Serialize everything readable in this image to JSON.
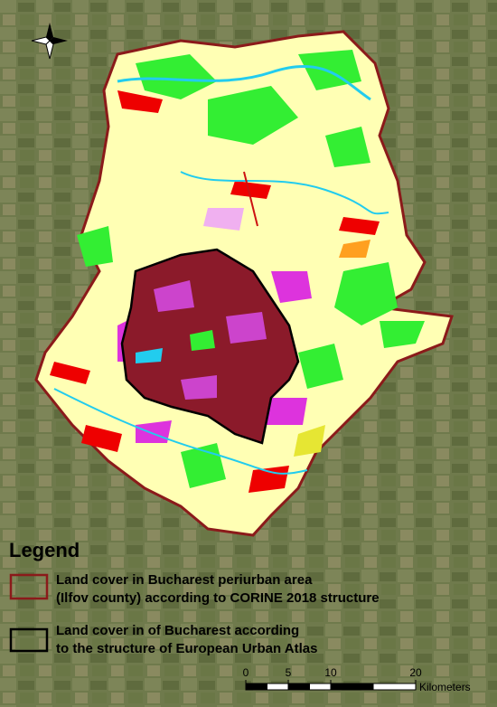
{
  "legend": {
    "title": "Legend",
    "items": [
      {
        "lines": [
          "Land cover in Bucharest periurban area",
          "(Ilfov county) according to CORINE 2018 structure"
        ]
      },
      {
        "lines": [
          "Land cover in of Bucharest according",
          "to the structure of European Urban Atlas"
        ]
      }
    ]
  },
  "scale_bar": {
    "ticks": [
      0,
      5,
      10,
      20
    ],
    "unit": "Kilometers"
  }
}
